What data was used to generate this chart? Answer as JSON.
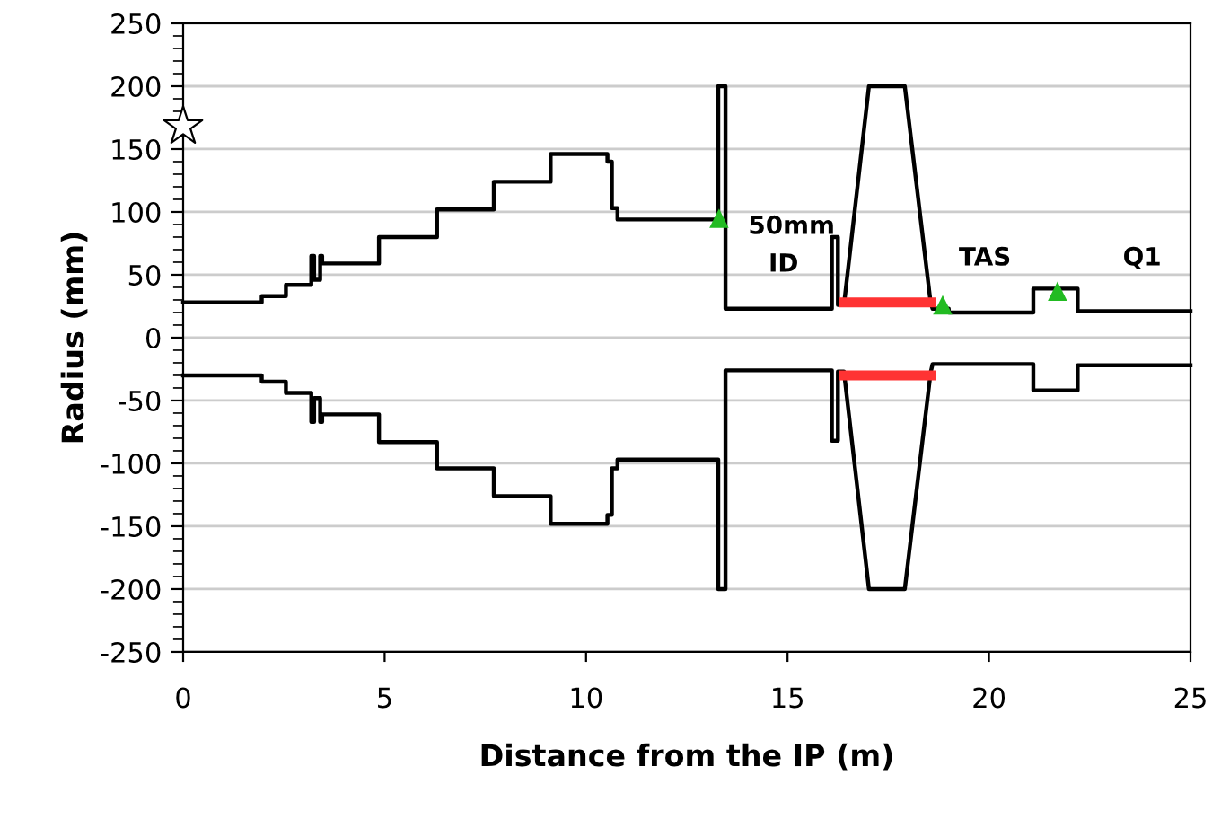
{
  "chart_data": {
    "type": "line",
    "xlabel": "Distance from the IP (m)",
    "ylabel": "Radius (mm)",
    "xlim": [
      0,
      25
    ],
    "xticks": [
      0,
      5,
      10,
      15,
      20,
      25
    ],
    "ylim": [
      -250,
      250
    ],
    "yticks": [
      -250,
      {
        "value": -240,
        "label": null
      },
      {
        "value": -230,
        "label": null
      },
      {
        "value": -220,
        "label": null
      },
      {
        "value": -210,
        "label": null
      },
      -200,
      {
        "value": -190,
        "label": null
      },
      {
        "value": -180,
        "label": null
      },
      {
        "value": -170,
        "label": null
      },
      {
        "value": -160,
        "label": null
      },
      -150,
      {
        "value": -140,
        "label": null
      },
      {
        "value": -130,
        "label": null
      },
      {
        "value": -120,
        "label": null
      },
      {
        "value": -110,
        "label": null
      },
      -100,
      {
        "value": -90,
        "label": null
      },
      {
        "value": -80,
        "label": null
      },
      {
        "value": -70,
        "label": null
      },
      {
        "value": -60,
        "label": null
      },
      -50,
      {
        "value": -40,
        "label": null
      },
      {
        "value": -30,
        "label": null
      },
      {
        "value": -20,
        "label": null
      },
      {
        "value": -10,
        "label": null
      },
      0,
      {
        "value": 10,
        "label": null
      },
      {
        "value": 20,
        "label": null
      },
      {
        "value": 30,
        "label": null
      },
      {
        "value": 40,
        "label": null
      },
      50,
      {
        "value": 60,
        "label": null
      },
      {
        "value": 70,
        "label": null
      },
      {
        "value": 80,
        "label": null
      },
      {
        "value": 90,
        "label": null
      },
      100,
      {
        "value": 110,
        "label": null
      },
      {
        "value": 120,
        "label": null
      },
      {
        "value": 130,
        "label": null
      },
      {
        "value": 140,
        "label": null
      },
      150,
      {
        "value": 160,
        "label": null
      },
      {
        "value": 170,
        "label": null
      },
      {
        "value": 180,
        "label": null
      },
      {
        "value": 190,
        "label": null
      },
      200,
      {
        "value": 210,
        "label": null
      },
      {
        "value": 220,
        "label": null
      },
      {
        "value": 230,
        "label": null
      },
      {
        "value": 240,
        "label": null
      },
      250
    ],
    "grid": "y",
    "legend": false,
    "line_style": "solid",
    "series": [
      {
        "color": "#000000",
        "x": [
          0,
          1.95,
          1.95,
          2.55,
          2.55,
          3.18,
          3.18,
          3.25,
          3.25,
          3.4,
          3.4,
          3.45,
          3.45,
          4.86,
          4.86,
          6.3,
          6.3,
          7.71,
          7.71,
          9.12,
          9.12,
          10.53,
          10.53,
          10.64,
          10.64,
          10.78,
          10.78,
          13.28,
          13.28,
          13.46,
          13.46,
          16.1,
          16.1,
          16.25,
          16.25,
          16.4,
          17.02,
          17.91,
          18.55,
          18.6,
          19.0,
          19.0,
          21.1,
          21.1,
          22.2,
          22.2,
          25
        ],
        "values": [
          28,
          28,
          33,
          33,
          42,
          42,
          65,
          65,
          46,
          46,
          65,
          65,
          59,
          59,
          80,
          80,
          102,
          102,
          124,
          124,
          146,
          146,
          140,
          140,
          103,
          103,
          94,
          94,
          200,
          200,
          23,
          23,
          80,
          80,
          26,
          26,
          200,
          200,
          28,
          23,
          23,
          20,
          20,
          39,
          39,
          21,
          21
        ]
      },
      {
        "color": "#000000",
        "x": [
          0,
          1.95,
          1.95,
          2.55,
          2.55,
          3.18,
          3.18,
          3.25,
          3.25,
          3.4,
          3.4,
          3.45,
          3.45,
          4.86,
          4.86,
          6.3,
          6.3,
          7.71,
          7.71,
          9.12,
          9.12,
          10.53,
          10.53,
          10.64,
          10.64,
          10.78,
          10.78,
          13.28,
          13.28,
          13.46,
          13.46,
          16.1,
          16.1,
          16.25,
          16.25,
          16.4,
          17.02,
          17.91,
          18.55,
          18.6,
          21.1,
          21.1,
          22.2,
          22.2,
          25
        ],
        "values": [
          -30,
          -30,
          -35,
          -35,
          -44,
          -44,
          -67,
          -67,
          -48,
          -48,
          -67,
          -67,
          -61,
          -61,
          -83,
          -83,
          -104,
          -104,
          -126,
          -126,
          -148,
          -148,
          -141,
          -141,
          -104,
          -104,
          -97,
          -97,
          -200,
          -200,
          -26,
          -26,
          -82,
          -82,
          -27,
          -27,
          -200,
          -200,
          -28,
          -21,
          -21,
          -42,
          -42,
          -22,
          -22
        ]
      },
      {
        "color": "#ff3333",
        "x": [
          16.4,
          18.55
        ],
        "values": [
          28,
          28
        ]
      },
      {
        "color": "#ff3333",
        "x": [
          16.4,
          18.55
        ],
        "values": [
          -30,
          -30
        ]
      },
      {
        "type": "scatter",
        "color": "#22bb22",
        "marker": "triangle",
        "x": [
          13.3,
          18.85,
          21.7
        ],
        "values": [
          95,
          26,
          37
        ]
      },
      {
        "type": "scatter",
        "color": "#ffffff",
        "marker": "star",
        "x": [
          0
        ],
        "values": [
          168
        ]
      }
    ],
    "annotations": [
      "50mm",
      "ID",
      "TAS",
      "Q1"
    ]
  }
}
